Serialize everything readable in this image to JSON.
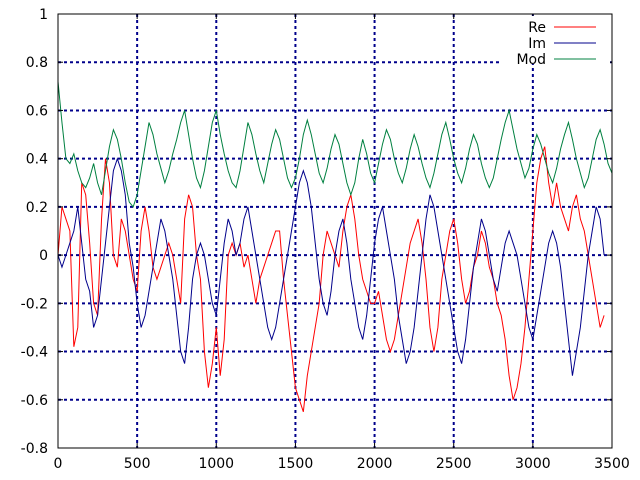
{
  "chart_data": {
    "type": "line",
    "title": "",
    "xlabel": "",
    "ylabel": "",
    "xlim": [
      0,
      3500
    ],
    "ylim": [
      -0.8,
      1.0
    ],
    "x_ticks": [
      0,
      500,
      1000,
      1500,
      2000,
      2500,
      3000,
      3500
    ],
    "x_tick_labels": [
      "0",
      "500",
      "1000",
      "1500",
      "2000",
      "2500",
      "3000",
      "3500"
    ],
    "y_ticks": [
      -0.8,
      -0.6,
      -0.4,
      -0.2,
      0,
      0.2,
      0.4,
      0.6,
      0.8,
      1.0
    ],
    "y_tick_labels": [
      "-0.8",
      "-0.6",
      "-0.4",
      "-0.2",
      "0",
      "0.2",
      "0.4",
      "0.6",
      "0.8",
      "1"
    ],
    "grid": true,
    "grid_color": "#00008b",
    "legend_position": "top-right",
    "sample_step": 25,
    "series": [
      {
        "name": "Re",
        "color": "#ff0000",
        "x_start": 0,
        "x_step": 25,
        "values": [
          0.0,
          0.2,
          0.15,
          0.1,
          -0.38,
          -0.3,
          0.3,
          0.25,
          0.05,
          -0.2,
          -0.25,
          0.15,
          0.4,
          0.3,
          0.0,
          -0.05,
          0.15,
          0.1,
          0.0,
          -0.1,
          -0.15,
          0.1,
          0.2,
          0.1,
          -0.05,
          -0.1,
          -0.05,
          0.0,
          0.05,
          0.0,
          -0.1,
          -0.2,
          0.15,
          0.25,
          0.2,
          0.0,
          -0.1,
          -0.4,
          -0.55,
          -0.45,
          -0.3,
          -0.5,
          -0.35,
          0.0,
          0.05,
          0.0,
          0.05,
          -0.05,
          0.0,
          -0.1,
          -0.2,
          -0.1,
          -0.05,
          0.0,
          0.05,
          0.1,
          0.1,
          -0.1,
          -0.25,
          -0.4,
          -0.55,
          -0.6,
          -0.65,
          -0.5,
          -0.4,
          -0.3,
          -0.2,
          0.0,
          0.1,
          0.05,
          0.0,
          -0.05,
          0.1,
          0.2,
          0.25,
          0.15,
          0.0,
          -0.1,
          -0.15,
          -0.2,
          -0.2,
          -0.15,
          -0.25,
          -0.35,
          -0.4,
          -0.35,
          -0.25,
          -0.15,
          -0.05,
          0.05,
          0.1,
          0.15,
          0.05,
          -0.1,
          -0.3,
          -0.4,
          -0.3,
          -0.1,
          0.0,
          0.1,
          0.15,
          0.05,
          -0.1,
          -0.2,
          -0.15,
          -0.05,
          0.0,
          0.1,
          0.05,
          -0.05,
          -0.1,
          -0.2,
          -0.25,
          -0.35,
          -0.5,
          -0.6,
          -0.55,
          -0.45,
          -0.3,
          -0.1,
          0.1,
          0.3,
          0.4,
          0.45,
          0.3,
          0.2,
          0.3,
          0.2,
          0.15,
          0.1,
          0.2,
          0.25,
          0.15,
          0.1,
          0.0,
          -0.1,
          -0.2,
          -0.3,
          -0.25
        ]
      },
      {
        "name": "Im",
        "color": "#00008b",
        "x_start": 0,
        "x_step": 25,
        "values": [
          0.0,
          -0.05,
          0.0,
          0.05,
          0.1,
          0.2,
          0.05,
          -0.1,
          -0.15,
          -0.3,
          -0.25,
          -0.1,
          0.05,
          0.2,
          0.35,
          0.4,
          0.35,
          0.25,
          0.05,
          -0.05,
          -0.2,
          -0.3,
          -0.25,
          -0.15,
          -0.05,
          0.05,
          0.15,
          0.1,
          0.0,
          -0.1,
          -0.25,
          -0.4,
          -0.45,
          -0.3,
          -0.1,
          0.0,
          0.05,
          0.0,
          -0.1,
          -0.2,
          -0.25,
          -0.1,
          0.05,
          0.15,
          0.1,
          0.0,
          0.05,
          0.15,
          0.2,
          0.1,
          0.0,
          -0.1,
          -0.2,
          -0.3,
          -0.35,
          -0.3,
          -0.2,
          -0.1,
          0.0,
          0.1,
          0.2,
          0.3,
          0.35,
          0.3,
          0.2,
          0.05,
          -0.1,
          -0.2,
          -0.25,
          -0.15,
          0.0,
          0.1,
          0.15,
          0.05,
          -0.1,
          -0.2,
          -0.3,
          -0.35,
          -0.25,
          -0.1,
          0.05,
          0.15,
          0.2,
          0.1,
          0.0,
          -0.1,
          -0.25,
          -0.35,
          -0.45,
          -0.4,
          -0.3,
          -0.15,
          0.0,
          0.15,
          0.25,
          0.2,
          0.1,
          0.0,
          -0.1,
          -0.2,
          -0.3,
          -0.4,
          -0.45,
          -0.35,
          -0.2,
          -0.05,
          0.05,
          0.15,
          0.1,
          0.0,
          -0.1,
          -0.15,
          -0.05,
          0.05,
          0.1,
          0.05,
          0.0,
          -0.1,
          -0.2,
          -0.3,
          -0.35,
          -0.25,
          -0.15,
          -0.05,
          0.05,
          0.1,
          0.05,
          -0.05,
          -0.2,
          -0.35,
          -0.5,
          -0.4,
          -0.3,
          -0.15,
          0.0,
          0.1,
          0.2,
          0.15,
          0.0
        ]
      },
      {
        "name": "Mod",
        "color": "#008040",
        "x_start": 0,
        "x_step": 25,
        "values": [
          0.72,
          0.55,
          0.4,
          0.38,
          0.42,
          0.35,
          0.3,
          0.28,
          0.32,
          0.38,
          0.3,
          0.25,
          0.35,
          0.45,
          0.52,
          0.48,
          0.4,
          0.3,
          0.22,
          0.2,
          0.25,
          0.35,
          0.45,
          0.55,
          0.5,
          0.42,
          0.36,
          0.3,
          0.35,
          0.42,
          0.48,
          0.55,
          0.6,
          0.5,
          0.4,
          0.32,
          0.28,
          0.35,
          0.45,
          0.55,
          0.6,
          0.5,
          0.42,
          0.35,
          0.3,
          0.28,
          0.35,
          0.45,
          0.55,
          0.5,
          0.42,
          0.35,
          0.3,
          0.38,
          0.46,
          0.52,
          0.48,
          0.4,
          0.32,
          0.28,
          0.32,
          0.4,
          0.5,
          0.56,
          0.5,
          0.42,
          0.34,
          0.3,
          0.36,
          0.44,
          0.5,
          0.46,
          0.38,
          0.3,
          0.25,
          0.3,
          0.4,
          0.48,
          0.42,
          0.34,
          0.3,
          0.38,
          0.46,
          0.52,
          0.48,
          0.4,
          0.34,
          0.3,
          0.36,
          0.44,
          0.5,
          0.45,
          0.38,
          0.32,
          0.28,
          0.34,
          0.42,
          0.5,
          0.55,
          0.48,
          0.4,
          0.34,
          0.3,
          0.36,
          0.44,
          0.5,
          0.46,
          0.38,
          0.32,
          0.28,
          0.32,
          0.4,
          0.48,
          0.55,
          0.6,
          0.52,
          0.44,
          0.38,
          0.32,
          0.36,
          0.44,
          0.5,
          0.46,
          0.4,
          0.34,
          0.3,
          0.36,
          0.44,
          0.5,
          0.55,
          0.48,
          0.4,
          0.34,
          0.28,
          0.32,
          0.4,
          0.48,
          0.52,
          0.46,
          0.38,
          0.34
        ]
      }
    ]
  }
}
